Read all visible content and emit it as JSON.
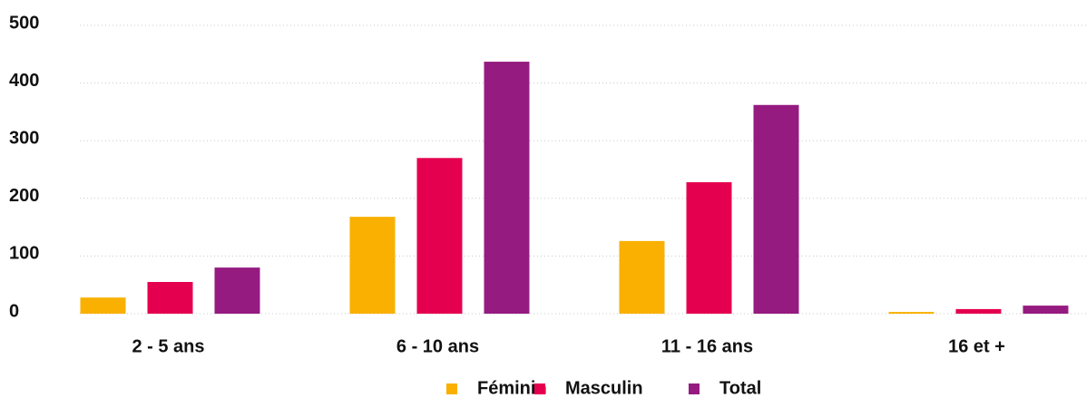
{
  "chart_data": {
    "type": "bar",
    "categories": [
      "2 - 5 ans",
      "6 - 10 ans",
      "11 - 16 ans",
      "16 et +"
    ],
    "series": [
      {
        "name": "Féminin",
        "color": "#f9b000",
        "values": [
          28,
          168,
          126,
          3
        ]
      },
      {
        "name": "Masculin",
        "color": "#e5004f",
        "values": [
          55,
          270,
          228,
          8
        ]
      },
      {
        "name": "Total",
        "color": "#951b81",
        "values": [
          80,
          437,
          362,
          14
        ]
      }
    ],
    "ylim": [
      0,
      500
    ],
    "yticks": [
      0,
      100,
      200,
      300,
      400,
      500
    ],
    "grid": true,
    "legend": "bottom"
  }
}
